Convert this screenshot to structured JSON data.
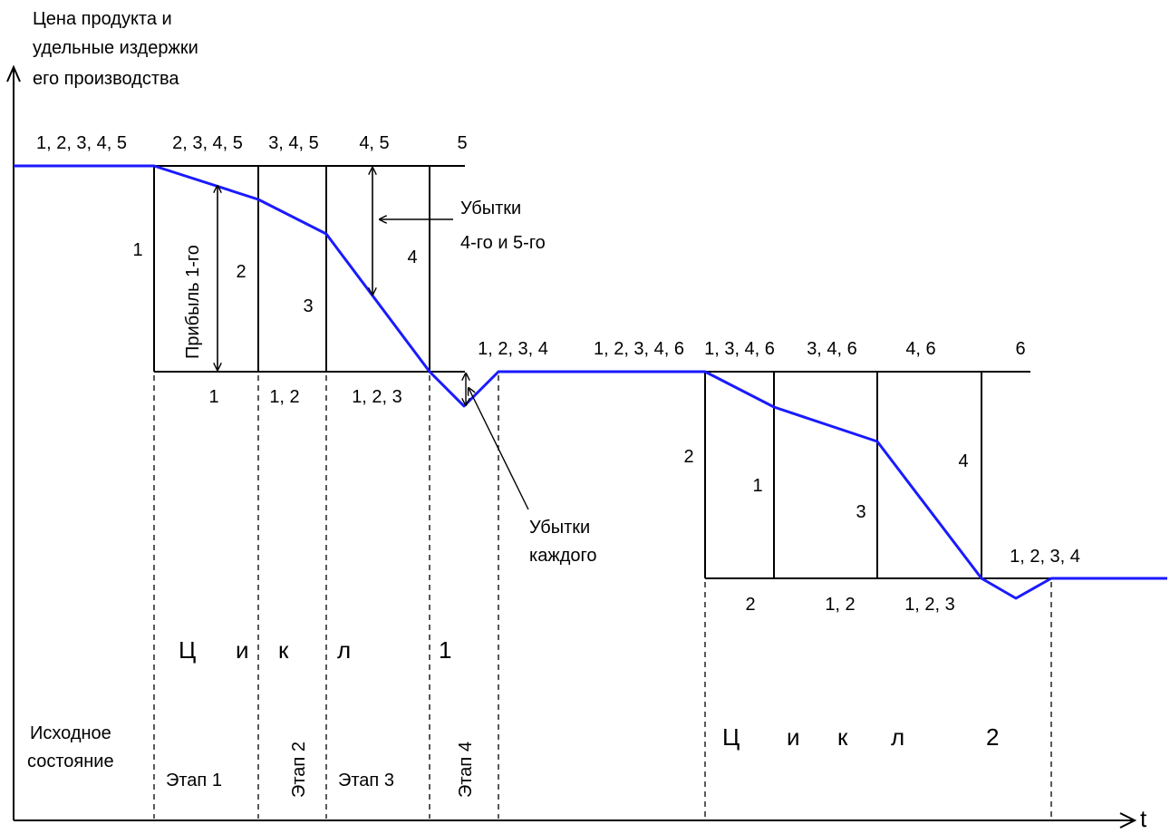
{
  "colors": {
    "curve": "#1a1aff",
    "ink": "#000000",
    "background": "#ffffff"
  },
  "axes": {
    "y_title": [
      "Цена продукта и",
      "удельные издержки",
      "его производства"
    ],
    "x_label": "t"
  },
  "cycle1": {
    "top_labels": [
      "1, 2, 3, 4, 5",
      "2, 3, 4, 5",
      "3, 4, 5",
      "4, 5",
      "5"
    ],
    "bottom_labels": [
      "1",
      "1, 2",
      "1, 2, 3"
    ],
    "column_labels": [
      "1",
      "2",
      "3",
      "4"
    ],
    "profit_label": "Прибыль 1-го",
    "losses_45": [
      "Убытки",
      "4-го и 5-го"
    ],
    "losses_each": [
      "Убытки",
      "каждого"
    ],
    "title_letters": [
      "Ц",
      "и",
      "к",
      "л",
      "1"
    ],
    "initial_state": [
      "Исходное",
      "состояние"
    ],
    "stages": [
      "Этап 1",
      "Этап 2",
      "Этап 3",
      "Этап 4"
    ]
  },
  "cycle2": {
    "top_labels": [
      "1, 2, 3, 4",
      "1, 2, 3, 4, 6",
      "1, 3, 4, 6",
      "3, 4, 6",
      "4, 6",
      "6"
    ],
    "bottom_labels": [
      "2",
      "1, 2",
      "1, 2, 3"
    ],
    "column_labels": [
      "2",
      "1",
      "3",
      "4"
    ],
    "after_label": "1, 2, 3, 4",
    "title_letters": [
      "Ц",
      "и",
      "к",
      "л",
      "2"
    ]
  }
}
